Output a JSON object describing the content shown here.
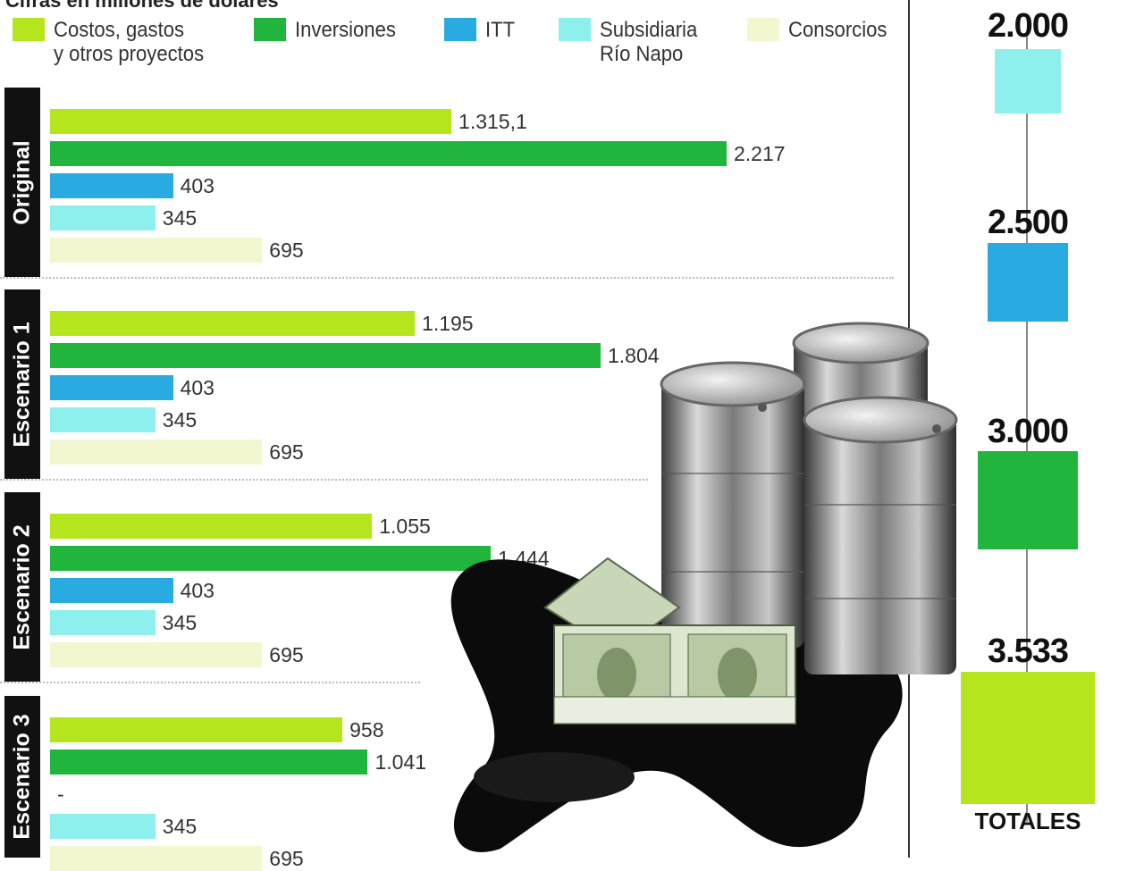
{
  "subtitle": "Cifras en millones de dólares",
  "colors": {
    "costos": "#b5e61d",
    "inversiones": "#22b53e",
    "itt": "#29abe2",
    "subsidiaria": "#8ef0ec",
    "consorcios": "#f2f7cf"
  },
  "legend": [
    {
      "label": "Costos, gastos\ny otros proyectos",
      "color": "#b5e61d"
    },
    {
      "label": "Inversiones",
      "color": "#22b53e"
    },
    {
      "label": "ITT",
      "color": "#29abe2"
    },
    {
      "label": "Subsidiaria\nRío Napo",
      "color": "#8ef0ec"
    },
    {
      "label": "Consorcios",
      "color": "#f2f7cf"
    }
  ],
  "chart_data": {
    "type": "bar",
    "orientation": "horizontal",
    "series_order": [
      "Costos, gastos y otros proyectos",
      "Inversiones",
      "ITT",
      "Subsidiaria Río Napo",
      "Consorcios"
    ],
    "groups": [
      {
        "name": "Original",
        "values": [
          1315.1,
          2217,
          403,
          345,
          695
        ],
        "labels": [
          "1.315,1",
          "2.217",
          "403",
          "345",
          "695"
        ]
      },
      {
        "name": "Escenario 1",
        "values": [
          1195,
          1804,
          403,
          345,
          695
        ],
        "labels": [
          "1.195",
          "1.804",
          "403",
          "345",
          "695"
        ]
      },
      {
        "name": "Escenario 2",
        "values": [
          1055,
          1444,
          403,
          345,
          695
        ],
        "labels": [
          "1.055",
          "1.444",
          "403",
          "345",
          "695"
        ]
      },
      {
        "name": "Escenario 3",
        "values": [
          958,
          1041,
          0,
          345,
          695
        ],
        "labels": [
          "958",
          "1.041",
          "-",
          "345",
          "695"
        ]
      }
    ],
    "totals": {
      "label": "TOTALES",
      "items": [
        {
          "value": 2000,
          "label": "2.000",
          "color": "#8ef0ec"
        },
        {
          "value": 2500,
          "label": "2.500",
          "color": "#29abe2"
        },
        {
          "value": 3000,
          "label": "3.000",
          "color": "#22b53e"
        },
        {
          "value": 3533,
          "label": "3.533",
          "color": "#b5e61d"
        }
      ]
    }
  },
  "illustration": {
    "icon": "oil-barrels-and-money-illustration"
  }
}
